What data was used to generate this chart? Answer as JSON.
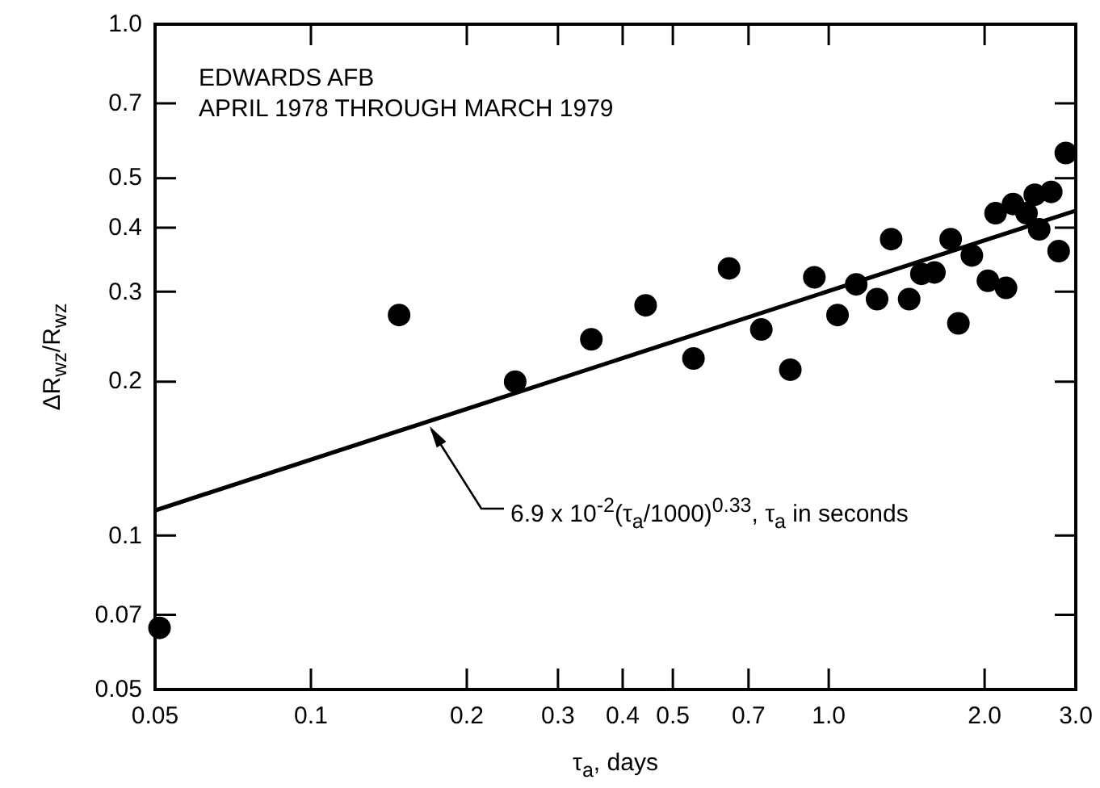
{
  "chart_data": {
    "type": "scatter",
    "title": "EDWARDS AFB",
    "subtitle": "APRIL 1978 THROUGH MARCH 1979",
    "xlabel": "τ$_{a}$, days",
    "ylabel": "ΔR$_{wz}$/R$_{wz}$",
    "log": "xy",
    "grid": false,
    "legend": false,
    "marker": "circle",
    "xlim": [
      0.05,
      3.0
    ],
    "ylim": [
      0.05,
      1.0
    ],
    "xticks": [
      {
        "value": 0.05,
        "label": "0.05"
      },
      {
        "value": 0.1,
        "label": "0.1"
      },
      {
        "value": 0.2,
        "label": "0.2"
      },
      {
        "value": 0.3,
        "label": "0.3"
      },
      {
        "value": 0.4,
        "label": "0.4"
      },
      {
        "value": 0.5,
        "label": "0.5"
      },
      {
        "value": 0.7,
        "label": "0.7"
      },
      {
        "value": 1.0,
        "label": "1.0"
      },
      {
        "value": 2.0,
        "label": "2.0"
      },
      {
        "value": 3.0,
        "label": "3.0"
      }
    ],
    "yticks": [
      {
        "value": 0.05,
        "label": "0.05"
      },
      {
        "value": 0.07,
        "label": "0.07"
      },
      {
        "value": 0.1,
        "label": "0.1"
      },
      {
        "value": 0.2,
        "label": "0.2"
      },
      {
        "value": 0.3,
        "label": "0.3"
      },
      {
        "value": 0.4,
        "label": "0.4"
      },
      {
        "value": 0.5,
        "label": "0.5"
      },
      {
        "value": 0.7,
        "label": "0.7"
      },
      {
        "value": 1.0,
        "label": "1.0"
      }
    ],
    "series": [
      {
        "type": "scatter",
        "color": "#000000",
        "x": [
          0.051,
          0.148,
          0.248,
          0.348,
          0.443,
          0.548,
          0.642,
          0.741,
          0.843,
          0.938,
          1.04,
          1.13,
          1.24,
          1.32,
          1.43,
          1.51,
          1.6,
          1.72,
          1.78,
          1.89,
          2.03,
          2.1,
          2.2,
          2.27,
          2.41,
          2.5,
          2.55,
          2.69,
          2.78,
          2.87
        ],
        "values": [
          0.066,
          0.27,
          0.2,
          0.242,
          0.282,
          0.222,
          0.333,
          0.253,
          0.211,
          0.32,
          0.27,
          0.31,
          0.29,
          0.38,
          0.29,
          0.325,
          0.327,
          0.38,
          0.26,
          0.353,
          0.315,
          0.427,
          0.305,
          0.445,
          0.427,
          0.464,
          0.397,
          0.47,
          0.36,
          0.56
        ]
      },
      {
        "type": "line",
        "color": "#000000",
        "marker": "none",
        "x": [
          0.05,
          3.0
        ],
        "values": [
          0.112,
          0.432
        ]
      }
    ],
    "annotations": [
      "6.9 x 10$^{-2}$(τ$_{a}$/1000)$^{0.33}$, τ$_{a}$ in seconds"
    ]
  }
}
